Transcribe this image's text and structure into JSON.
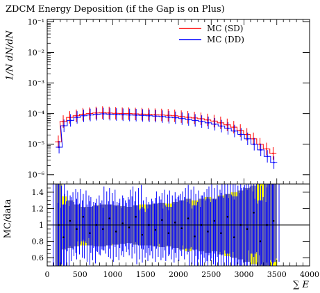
{
  "chart_data": [
    {
      "type": "line",
      "panel": "top",
      "title": "ZDCM Energy Deposition (if the Gap is on Plus)",
      "ylabel": "1/N dN/dN",
      "yscale": "log",
      "xlim": [
        0,
        4000
      ],
      "ylim": [
        5e-07,
        0.12
      ],
      "y_ticks": [
        {
          "label": "10⁻⁶",
          "value": 1e-06
        },
        {
          "label": "10⁻⁵",
          "value": 1e-05
        },
        {
          "label": "10⁻⁴",
          "value": 0.0001
        },
        {
          "label": "10⁻³",
          "value": 0.001
        },
        {
          "label": "10⁻²",
          "value": 0.01
        },
        {
          "label": "10⁻¹",
          "value": 0.1
        }
      ],
      "legend_position": "top-right",
      "x": [
        175,
        250,
        350,
        450,
        550,
        650,
        750,
        850,
        950,
        1050,
        1150,
        1250,
        1350,
        1450,
        1550,
        1650,
        1750,
        1850,
        1950,
        2050,
        2150,
        2250,
        2350,
        2450,
        2550,
        2650,
        2750,
        2850,
        2950,
        3050,
        3150,
        3250,
        3350,
        3450
      ],
      "series": [
        {
          "name": "MC (SD)",
          "color": "#ff0000",
          "values": [
            1.2e-05,
            5.5e-05,
            7.5e-05,
            8.5e-05,
            9.5e-05,
            0.0001,
            0.000105,
            0.000108,
            0.000105,
            0.000102,
            0.0001,
            0.0001,
            9.8e-05,
            9.6e-05,
            9.5e-05,
            9.2e-05,
            9e-05,
            8.8e-05,
            8.5e-05,
            8e-05,
            7.6e-05,
            7.2e-05,
            6.8e-05,
            6.2e-05,
            5.7e-05,
            5e-05,
            4.3e-05,
            3.6e-05,
            2.8e-05,
            2.1e-05,
            1.5e-05,
            1e-05,
            7e-06,
            5e-06
          ]
        },
        {
          "name": "MC (DD)",
          "color": "#0000ff",
          "values": [
            8e-06,
            4e-05,
            6e-05,
            7.5e-05,
            8.5e-05,
            9e-05,
            9.5e-05,
            9.8e-05,
            9.6e-05,
            9.4e-05,
            9.2e-05,
            9e-05,
            8.9e-05,
            8.7e-05,
            8.5e-05,
            8.3e-05,
            8e-05,
            7.6e-05,
            7.3e-05,
            6.9e-05,
            6.4e-05,
            6e-05,
            5.5e-05,
            5e-05,
            4.5e-05,
            3.9e-05,
            3.3e-05,
            2.7e-05,
            2.1e-05,
            1.5e-05,
            1e-05,
            6.5e-06,
            4e-06,
            2.5e-06
          ]
        }
      ]
    },
    {
      "type": "line",
      "panel": "bottom",
      "xlabel": "∑ E",
      "ylabel": "MC/data",
      "xlim": [
        0,
        4000
      ],
      "ylim": [
        0.5,
        1.5
      ],
      "x_ticks": [
        "0",
        "500",
        "1000",
        "1500",
        "2000",
        "2500",
        "3000",
        "3500",
        "4000"
      ],
      "y_ticks": [
        "0.6",
        "0.8",
        "1",
        "1.2",
        "1.4"
      ],
      "reference_line": 1,
      "band_color": "#ffff00",
      "overlap_color": "#7f7f9f",
      "x": [
        175,
        250,
        350,
        450,
        550,
        650,
        750,
        850,
        950,
        1050,
        1150,
        1250,
        1350,
        1450,
        1550,
        1650,
        1750,
        1850,
        1950,
        2050,
        2150,
        2250,
        2350,
        2450,
        2550,
        2650,
        2750,
        2850,
        2950,
        3050,
        3150,
        3250,
        3350,
        3450
      ],
      "series": [
        {
          "name": "MC (SD)",
          "color": "#ffff00",
          "lower": [
            0.5,
            0.7,
            0.72,
            0.74,
            0.75,
            0.75,
            0.74,
            0.74,
            0.75,
            0.76,
            0.77,
            0.78,
            0.76,
            0.75,
            0.75,
            0.74,
            0.73,
            0.74,
            0.72,
            0.7,
            0.68,
            0.7,
            0.68,
            0.66,
            0.68,
            0.64,
            0.62,
            0.6,
            0.58,
            0.55,
            0.52,
            0.5,
            0.5,
            0.5
          ],
          "upper": [
            1.5,
            1.35,
            1.3,
            1.25,
            1.22,
            1.22,
            1.24,
            1.25,
            1.25,
            1.24,
            1.23,
            1.22,
            1.24,
            1.25,
            1.25,
            1.26,
            1.27,
            1.26,
            1.28,
            1.3,
            1.32,
            1.3,
            1.32,
            1.34,
            1.32,
            1.36,
            1.38,
            1.4,
            1.42,
            1.45,
            1.48,
            1.5,
            1.5,
            1.5
          ]
        },
        {
          "name": "MC (DD)",
          "color": "#0000ff",
          "values": [
            1.0,
            0.85,
            1.05,
            0.95,
            1.1,
            0.9,
            1.0,
            0.95,
            1.08,
            0.92,
            1.02,
            0.97,
            1.1,
            0.88,
            1.0,
            0.94,
            1.06,
            0.9,
            1.03,
            0.96,
            1.08,
            0.86,
            1.0,
            0.92,
            1.05,
            0.9,
            1.1,
            0.85,
            1.0,
            0.95,
            1.15,
            0.8,
            1.0,
            1.05
          ],
          "err": [
            0.5,
            0.4,
            0.35,
            0.35,
            0.3,
            0.35,
            0.32,
            0.3,
            0.35,
            0.33,
            0.3,
            0.34,
            0.35,
            0.32,
            0.3,
            0.35,
            0.33,
            0.32,
            0.35,
            0.36,
            0.37,
            0.38,
            0.4,
            0.4,
            0.42,
            0.45,
            0.45,
            0.5,
            0.5,
            0.5,
            0.5,
            0.5,
            0.5,
            0.5
          ]
        }
      ]
    }
  ]
}
